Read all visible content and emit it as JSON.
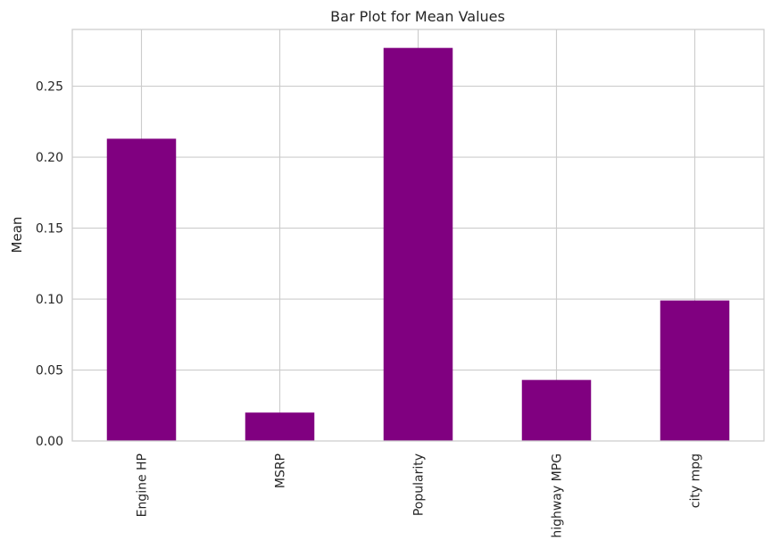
{
  "chart_data": {
    "type": "bar",
    "title": "Bar Plot for Mean Values",
    "xlabel": "",
    "ylabel": "Mean",
    "categories": [
      "Engine HP",
      "MSRP",
      "Popularity",
      "highway MPG",
      "city mpg"
    ],
    "values": [
      0.213,
      0.02,
      0.277,
      0.043,
      0.099
    ],
    "ylim": [
      0,
      0.29
    ],
    "yticks": [
      0.0,
      0.05,
      0.1,
      0.15,
      0.2,
      0.25
    ],
    "ytick_labels": [
      "0.00",
      "0.05",
      "0.10",
      "0.15",
      "0.20",
      "0.25"
    ],
    "grid": true,
    "bar_color": "#800080",
    "grid_color": "#cccccc",
    "spine_color": "#cccccc",
    "x_tick_rotation": "vertical"
  }
}
